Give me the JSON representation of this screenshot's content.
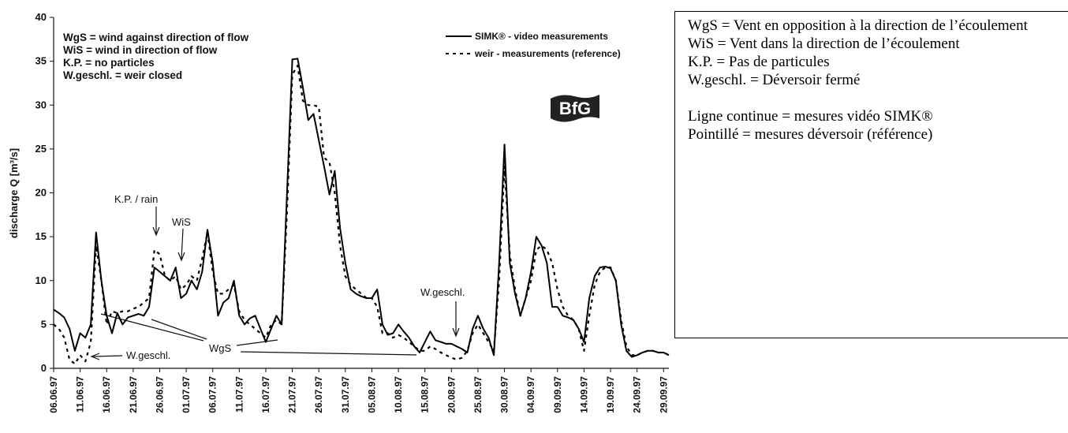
{
  "chart_data": {
    "type": "line",
    "y_label": "discharge Q [m³/s]",
    "notes": [
      "WgS = wind against direction of flow",
      "WiS = wind in direction of flow",
      "K.P. = no particles",
      "W.geschl. = weir closed"
    ],
    "annotations": [
      "K.P. / rain",
      "WiS",
      "W.geschl.",
      "W.geschl.",
      "WgS"
    ],
    "logo": "BfG",
    "x": [
      "06.06.97",
      "07.06.97",
      "08.06.97",
      "09.06.97",
      "10.06.97",
      "11.06.97",
      "12.06.97",
      "13.06.97",
      "14.06.97",
      "15.06.97",
      "16.06.97",
      "17.06.97",
      "18.06.97",
      "19.06.97",
      "20.06.97",
      "21.06.97",
      "22.06.97",
      "23.06.97",
      "24.06.97",
      "25.06.97",
      "26.06.97",
      "27.06.97",
      "28.06.97",
      "29.06.97",
      "30.06.97",
      "01.07.97",
      "02.07.97",
      "03.07.97",
      "04.07.97",
      "05.07.97",
      "06.07.97",
      "07.07.97",
      "08.07.97",
      "09.07.97",
      "10.07.97",
      "11.07.97",
      "12.07.97",
      "13.07.97",
      "14.07.97",
      "15.07.97",
      "16.07.97",
      "17.07.97",
      "18.07.97",
      "19.07.97",
      "20.07.97",
      "21.07.97",
      "22.07.97",
      "23.07.97",
      "24.07.97",
      "25.07.97",
      "26.07.97",
      "27.07.97",
      "28.07.97",
      "29.07.97",
      "30.07.97",
      "31.07.97",
      "01.08.97",
      "02.08.97",
      "03.08.97",
      "04.08.97",
      "05.08.97",
      "06.08.97",
      "07.08.97",
      "08.08.97",
      "09.08.97",
      "10.08.97",
      "11.08.97",
      "12.08.97",
      "13.08.97",
      "14.08.97",
      "15.08.97",
      "16.08.97",
      "17.08.97",
      "18.08.97",
      "19.08.97",
      "20.08.97",
      "21.08.97",
      "22.08.97",
      "23.08.97",
      "24.08.97",
      "25.08.97",
      "26.08.97",
      "27.08.97",
      "28.08.97",
      "29.08.97",
      "30.08.97",
      "31.08.97",
      "01.09.97",
      "02.09.97",
      "03.09.97",
      "04.09.97",
      "05.09.97",
      "06.09.97",
      "07.09.97",
      "08.09.97",
      "09.09.97",
      "10.09.97",
      "11.09.97",
      "12.09.97",
      "13.09.97",
      "14.09.97",
      "15.09.97",
      "16.09.97",
      "17.09.97",
      "18.09.97",
      "19.09.97",
      "20.09.97",
      "21.09.97",
      "22.09.97",
      "23.09.97",
      "24.09.97",
      "25.09.97",
      "26.09.97",
      "27.09.97",
      "28.09.97",
      "29.09.97",
      "30.09.97"
    ],
    "series": [
      {
        "name": "SIMK® - video measurements",
        "color": "#000000",
        "dash": false,
        "values": [
          6.7,
          6.3,
          5.8,
          4.5,
          2.0,
          4.0,
          3.5,
          5.0,
          15.5,
          10.0,
          6.0,
          4.0,
          6.3,
          5.0,
          5.8,
          6.0,
          6.2,
          6.0,
          7.0,
          11.5,
          11.0,
          10.5,
          10.0,
          11.5,
          8.0,
          8.5,
          10.0,
          9.0,
          11.0,
          15.8,
          12.0,
          6.0,
          7.5,
          8.0,
          10.0,
          6.0,
          5.0,
          5.7,
          6.0,
          4.5,
          3.0,
          4.5,
          6.0,
          5.0,
          20.0,
          35.2,
          35.3,
          32.0,
          28.3,
          29.0,
          26.0,
          23.0,
          19.8,
          22.5,
          16.0,
          12.0,
          9.0,
          8.5,
          8.2,
          8.0,
          8.0,
          9.0,
          5.0,
          3.8,
          4.0,
          5.0,
          4.2,
          3.5,
          2.5,
          1.8,
          3.0,
          4.2,
          3.2,
          3.0,
          2.8,
          2.8,
          2.5,
          2.2,
          1.8,
          4.5,
          6.0,
          4.5,
          3.5,
          1.5,
          12.0,
          25.5,
          12.0,
          8.5,
          6.0,
          8.0,
          11.0,
          15.0,
          14.0,
          12.0,
          7.0,
          7.0,
          6.0,
          5.8,
          5.5,
          4.5,
          3.0,
          8.0,
          10.5,
          11.5,
          11.6,
          11.4,
          10.0,
          5.0,
          2.0,
          1.3,
          1.5,
          1.8,
          2.0,
          2.0,
          1.8,
          1.8,
          1.5
        ]
      },
      {
        "name": "weir - measurements (reference)",
        "color": "#000000",
        "dash": true,
        "values": [
          5.0,
          4.5,
          3.5,
          1.0,
          0.5,
          1.5,
          0.8,
          3.0,
          14.0,
          10.0,
          5.0,
          6.5,
          6.3,
          6.5,
          6.5,
          6.8,
          7.0,
          7.5,
          8.0,
          13.5,
          13.0,
          10.5,
          10.0,
          10.5,
          9.0,
          9.5,
          10.5,
          10.0,
          12.5,
          15.5,
          11.0,
          8.5,
          8.5,
          9.0,
          9.5,
          6.5,
          5.5,
          5.0,
          4.5,
          4.0,
          3.5,
          5.0,
          5.5,
          5.0,
          18.0,
          33.5,
          34.5,
          30.5,
          30.0,
          30.0,
          29.8,
          24.0,
          23.5,
          20.0,
          14.0,
          10.5,
          9.5,
          9.0,
          8.5,
          8.0,
          8.0,
          7.0,
          4.0,
          4.0,
          3.5,
          3.8,
          3.5,
          3.0,
          2.5,
          2.0,
          2.0,
          2.5,
          2.2,
          1.8,
          1.5,
          1.2,
          1.0,
          1.2,
          2.0,
          4.0,
          5.0,
          4.0,
          3.0,
          2.0,
          10.0,
          23.0,
          13.0,
          9.0,
          6.0,
          8.0,
          10.0,
          13.5,
          14.0,
          13.5,
          12.0,
          9.0,
          7.0,
          6.0,
          5.5,
          4.5,
          2.0,
          6.0,
          9.5,
          11.0,
          11.5,
          11.5,
          10.0,
          5.5,
          2.5,
          1.5,
          1.5,
          1.8,
          2.0,
          2.0,
          1.8,
          1.8,
          1.5
        ]
      }
    ],
    "xlim": [
      "06.06.97",
      "30.09.97"
    ],
    "xticks": [
      "06.06.97",
      "11.06.97",
      "16.06.97",
      "21.06.97",
      "26.06.97",
      "01.07.97",
      "06.07.97",
      "11.07.97",
      "16.07.97",
      "21.07.97",
      "26.07.97",
      "31.07.97",
      "05.08.97",
      "10.08.97",
      "15.08.97",
      "20.08.97",
      "25.08.97",
      "30.08.97",
      "04.09.97",
      "09.09.97",
      "14.09.97",
      "19.09.97",
      "24.09.97",
      "29.09.97"
    ],
    "ylim": [
      0,
      40
    ],
    "yticks": [
      0,
      5,
      10,
      15,
      20,
      25,
      30,
      35,
      40
    ]
  },
  "side_note": {
    "glossary": [
      "WgS = Vent en opposition à la direction de l’écoulement",
      "WiS = Vent dans la direction de l’écoulement",
      "K.P. = Pas de particules",
      "W.geschl. = Déversoir fermé"
    ],
    "legend": [
      "Ligne continue = mesures vidéo SIMK®",
      "Pointillé = mesures déversoir (référence)"
    ]
  }
}
